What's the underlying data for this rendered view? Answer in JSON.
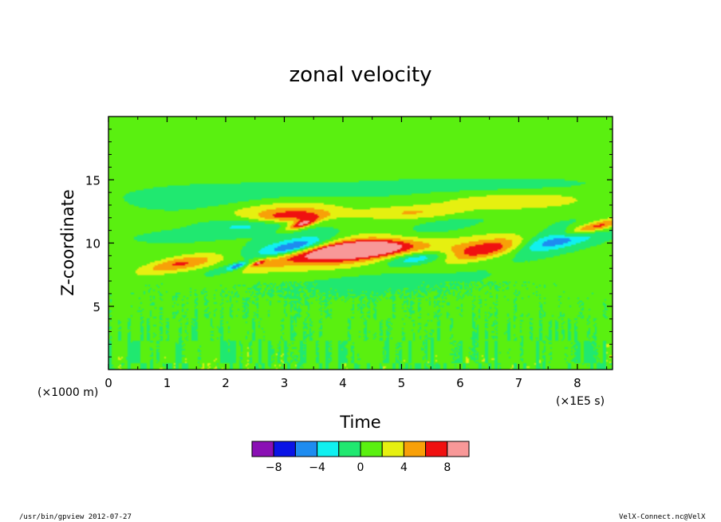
{
  "chart_data": {
    "type": "heatmap",
    "title": "zonal velocity",
    "xlabel": "Time",
    "xunit": "(×1E5 s)",
    "ylabel": "Z-coordinate",
    "yunit": "(×1000 m)",
    "xlim": [
      0,
      8.6
    ],
    "ylim": [
      0,
      20
    ],
    "x_ticks": [
      0,
      1,
      2,
      3,
      4,
      5,
      6,
      7,
      8
    ],
    "y_ticks": [
      5,
      10,
      15
    ],
    "x_tick_labels": [
      "0",
      "1",
      "2",
      "3",
      "4",
      "5",
      "6",
      "7",
      "8"
    ],
    "y_tick_labels": [
      "5",
      "10",
      "15"
    ],
    "colorbar": {
      "levels": [
        -10,
        -8,
        -6,
        -4,
        -2,
        0,
        2,
        4,
        6,
        8,
        10
      ],
      "colors": [
        "#8a10b4",
        "#0a14e6",
        "#1e8cf0",
        "#10f0f0",
        "#20e870",
        "#5af010",
        "#e6f010",
        "#f8a008",
        "#f01010",
        "#f89898"
      ],
      "tick_values": [
        -8,
        -4,
        0,
        4,
        8
      ],
      "tick_labels": [
        "−8",
        "−4",
        "0",
        "4",
        "8"
      ]
    },
    "background_value": 0.5,
    "features": [
      {
        "t": 1.05,
        "z": 8.3,
        "dt": 0.45,
        "dz": 0.9,
        "tilt": 0.55,
        "value": 3
      },
      {
        "t": 1.45,
        "z": 8.4,
        "dt": 0.5,
        "dz": 0.8,
        "tilt": 0.55,
        "value": 3
      },
      {
        "t": 2.1,
        "z": 8.0,
        "dt": 0.35,
        "dz": 0.7,
        "tilt": 0.5,
        "value": -3
      },
      {
        "t": 2.2,
        "z": 8.2,
        "dt": 0.12,
        "dz": 0.3,
        "tilt": 0.4,
        "value": -5
      },
      {
        "t": 2.6,
        "z": 8.4,
        "dt": 0.55,
        "dz": 1.1,
        "tilt": 0.6,
        "value": 3
      },
      {
        "t": 2.55,
        "z": 8.4,
        "dt": 0.08,
        "dz": 0.3,
        "tilt": 0.4,
        "value": 5
      },
      {
        "t": 3.05,
        "z": 9.8,
        "dt": 0.65,
        "dz": 1.3,
        "tilt": 0.55,
        "value": -3
      },
      {
        "t": 3.15,
        "z": 9.6,
        "dt": 0.4,
        "dz": 0.8,
        "tilt": 0.55,
        "value": -5
      },
      {
        "t": 2.4,
        "z": 11.5,
        "dt": 0.8,
        "dz": 0.8,
        "tilt": 0.35,
        "value": -3
      },
      {
        "t": 2.9,
        "z": 12.6,
        "dt": 1.05,
        "dz": 0.9,
        "tilt": 0.45,
        "value": 3
      },
      {
        "t": 3.1,
        "z": 12.1,
        "dt": 0.7,
        "dz": 0.55,
        "tilt": 0.5,
        "value": 5
      },
      {
        "t": 4.25,
        "z": 9.4,
        "dt": 1.3,
        "dz": 2.0,
        "tilt": 0.55,
        "value": 3
      },
      {
        "t": 4.25,
        "z": 9.4,
        "dt": 1.1,
        "dz": 1.25,
        "tilt": 0.55,
        "value": 5
      },
      {
        "t": 4.3,
        "z": 9.5,
        "dt": 0.75,
        "dz": 0.7,
        "tilt": 0.55,
        "value": 7
      },
      {
        "t": 3.3,
        "z": 11.5,
        "dt": 0.2,
        "dz": 0.5,
        "tilt": 0.4,
        "value": 7
      },
      {
        "t": 5.15,
        "z": 10.5,
        "dt": 0.8,
        "dz": 1.7,
        "tilt": 0.55,
        "value": -3
      },
      {
        "t": 5.3,
        "z": 8.8,
        "dt": 0.55,
        "dz": 0.6,
        "tilt": 0.5,
        "value": -5
      },
      {
        "t": 5.15,
        "z": 12.4,
        "dt": 1.0,
        "dz": 0.6,
        "tilt": 0.35,
        "value": 3
      },
      {
        "t": 6.45,
        "z": 9.7,
        "dt": 0.85,
        "dz": 1.5,
        "tilt": 0.55,
        "value": 3
      },
      {
        "t": 6.55,
        "z": 9.5,
        "dt": 0.65,
        "dz": 1.0,
        "tilt": 0.55,
        "value": 5
      },
      {
        "t": 7.5,
        "z": 10.4,
        "dt": 0.85,
        "dz": 1.7,
        "tilt": 0.55,
        "value": -3
      },
      {
        "t": 7.6,
        "z": 10.2,
        "dt": 0.55,
        "dz": 1.0,
        "tilt": 0.55,
        "value": -5
      },
      {
        "t": 6.9,
        "z": 13.3,
        "dt": 1.3,
        "dz": 0.75,
        "tilt": 0.3,
        "value": 3
      },
      {
        "t": 8.2,
        "z": 11.2,
        "dt": 0.55,
        "dz": 1.2,
        "tilt": 0.6,
        "value": 3
      },
      {
        "t": 8.25,
        "z": 11.2,
        "dt": 0.3,
        "dz": 0.7,
        "tilt": 0.6,
        "value": 5
      },
      {
        "t": 3.0,
        "z": 14.0,
        "dt": 2.5,
        "dz": 0.9,
        "tilt": 0.2,
        "value": -1
      },
      {
        "t": 6.5,
        "z": 14.6,
        "dt": 2.0,
        "dz": 0.7,
        "tilt": 0.15,
        "value": -1
      },
      {
        "t": 1.5,
        "z": 13.3,
        "dt": 1.2,
        "dz": 1.0,
        "tilt": 0.1,
        "value": -1
      },
      {
        "t": 4.2,
        "z": 7.0,
        "dt": 2.6,
        "dz": 1.6,
        "tilt": 0.3,
        "value": -1
      },
      {
        "t": 1.2,
        "z": 10.5,
        "dt": 0.9,
        "dz": 0.6,
        "tilt": 0.4,
        "value": -1
      }
    ]
  },
  "footer": {
    "left": "/usr/bin/gpview  2012-07-27",
    "right": "VelX-Connect.nc@VelX"
  }
}
